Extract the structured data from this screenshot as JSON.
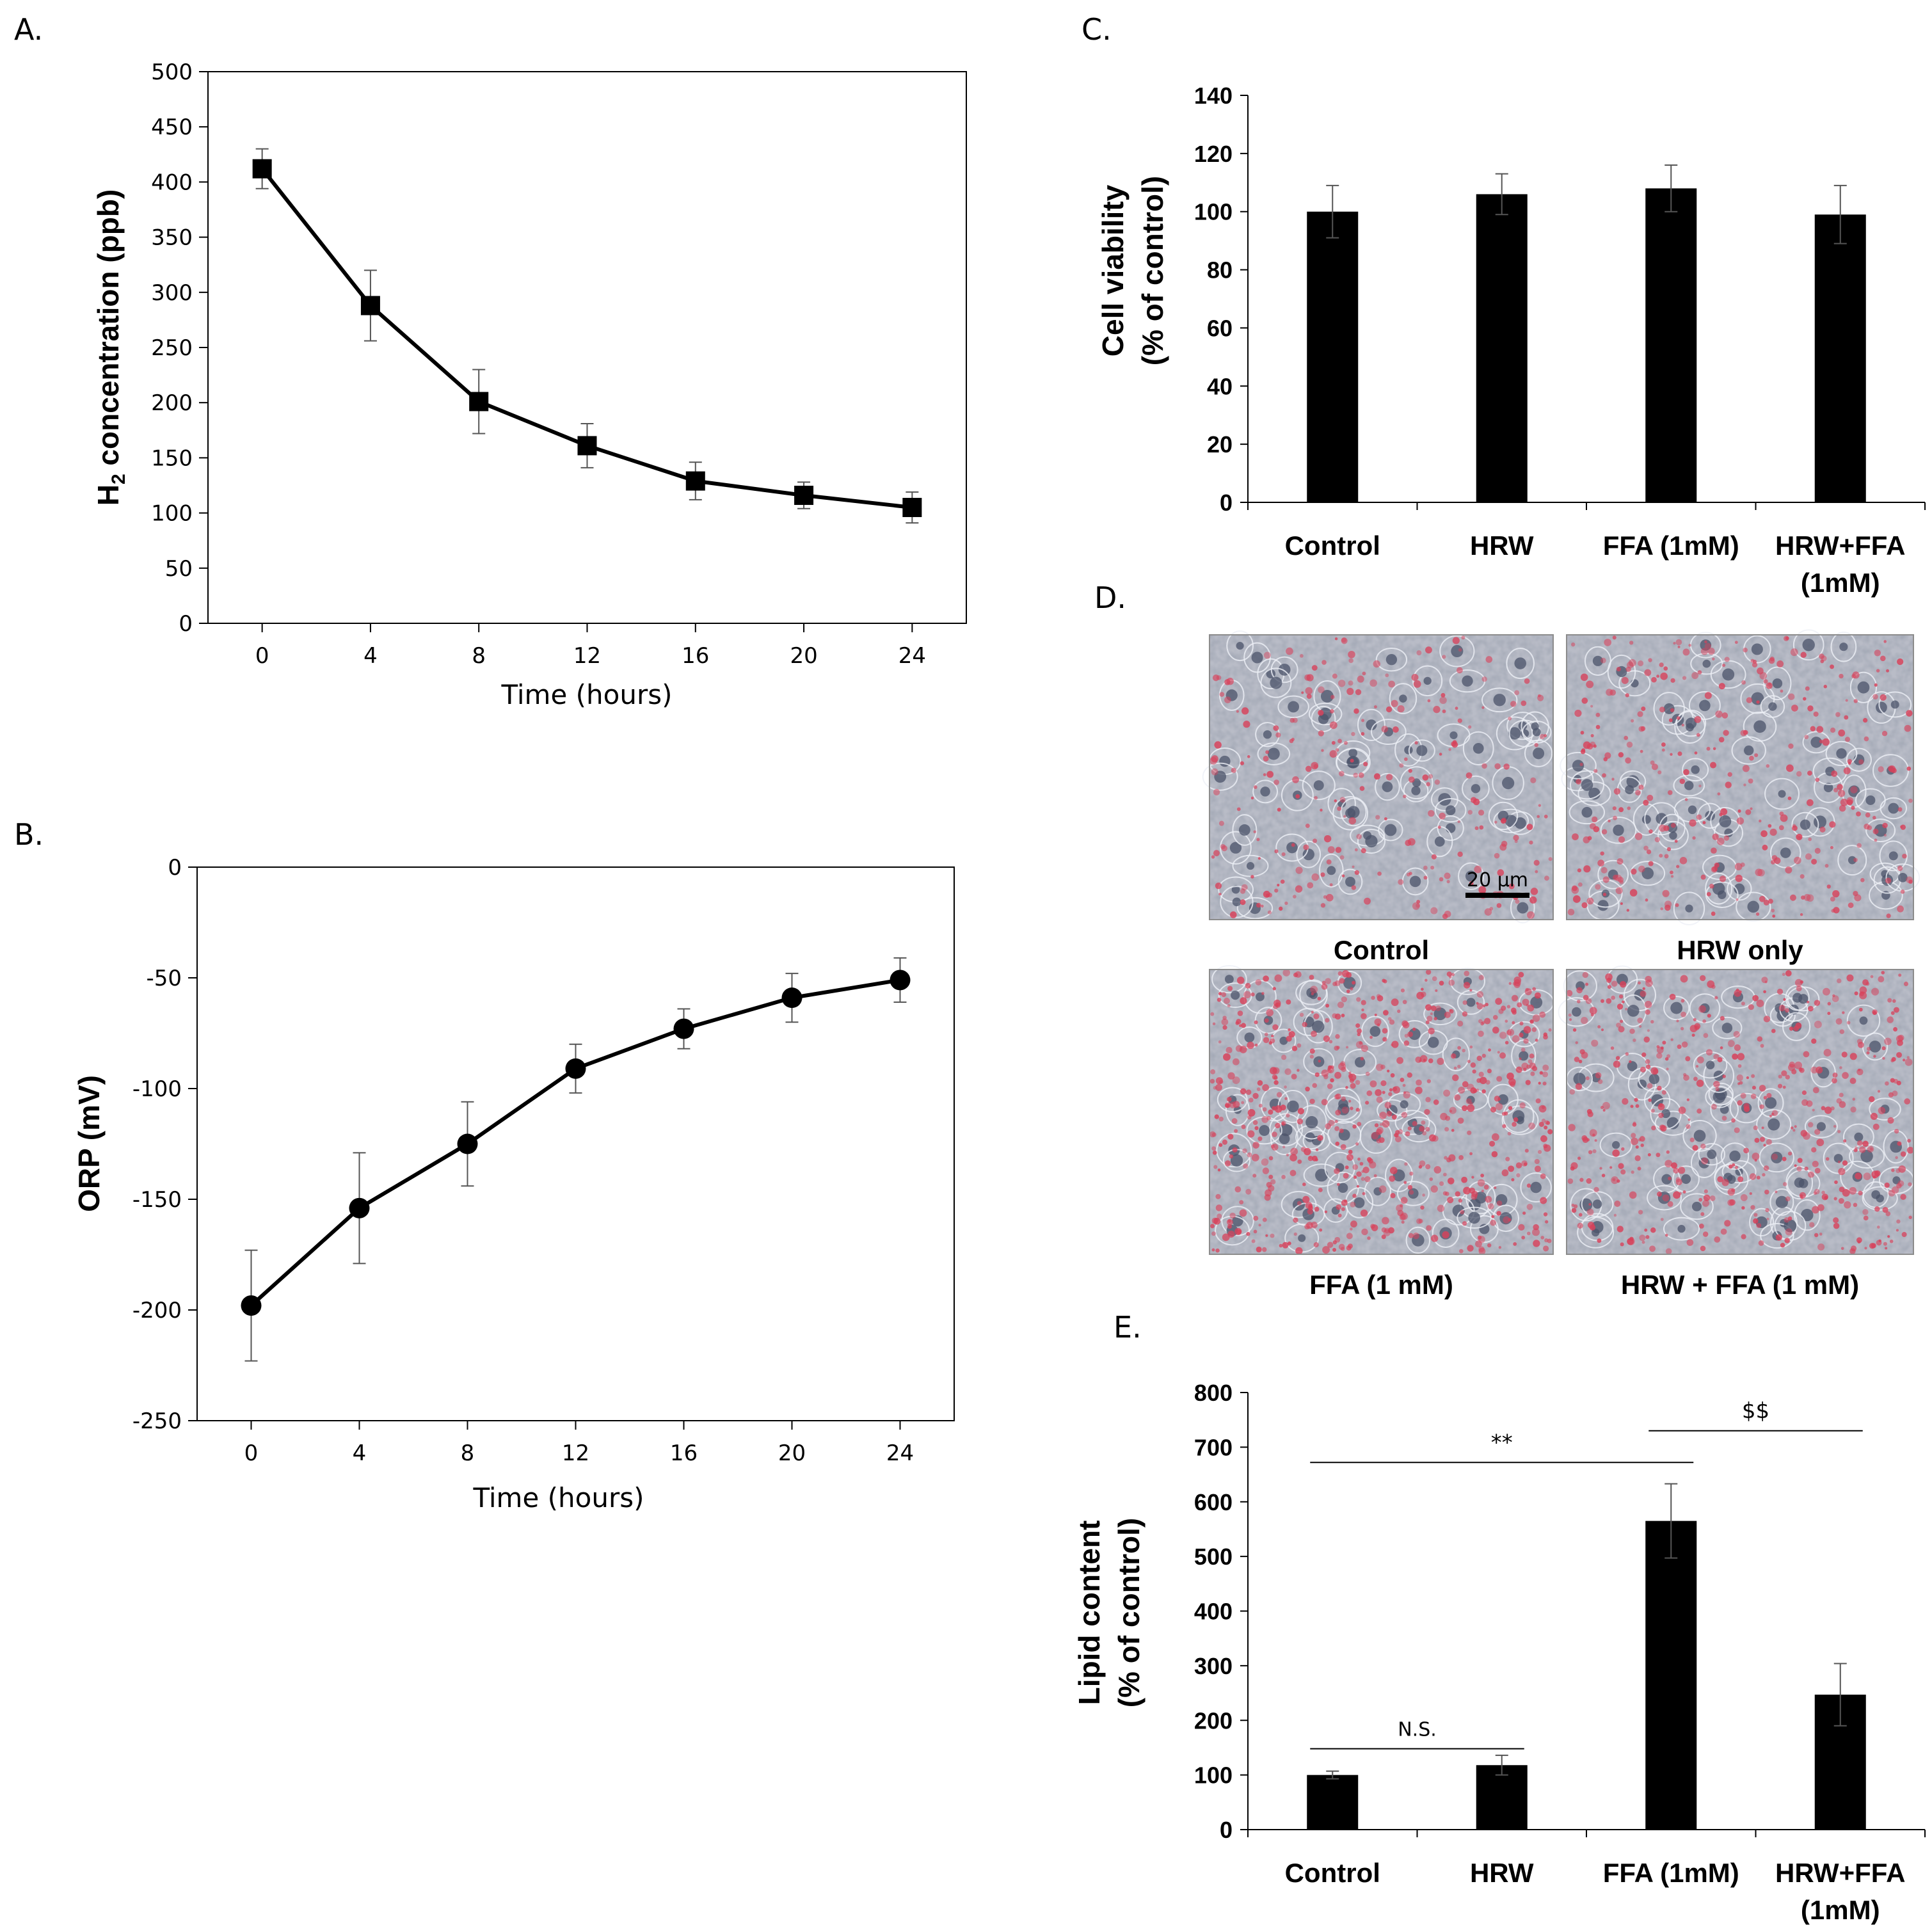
{
  "colors": {
    "ink": "#000000",
    "error": "#555555",
    "frame": "#8c8c8c",
    "stain": "#d8415a"
  },
  "panels": {
    "A": "A.",
    "B": "B.",
    "C": "C.",
    "D": "D.",
    "E": "E."
  },
  "chart_data": [
    {
      "id": "A",
      "type": "line",
      "xlabel": "Time (hours)",
      "ylabel_main": "H",
      "ylabel_sub": "2",
      "ylabel_rest": " concentration (ppb)",
      "x": [
        0,
        4,
        8,
        12,
        16,
        20,
        24
      ],
      "values": [
        412,
        288,
        201,
        161,
        129,
        116,
        105
      ],
      "errors": [
        18,
        32,
        29,
        20,
        17,
        12,
        14
      ],
      "xlim": [
        -2,
        26
      ],
      "ylim": [
        0,
        500
      ],
      "xticks": [
        0,
        4,
        8,
        12,
        16,
        20,
        24
      ],
      "yticks": [
        0,
        50,
        100,
        150,
        200,
        250,
        300,
        350,
        400,
        450,
        500
      ],
      "marker": "square"
    },
    {
      "id": "B",
      "type": "line",
      "xlabel": "Time (hours)",
      "ylabel": "ORP (mV)",
      "x": [
        0,
        4,
        8,
        12,
        16,
        20,
        24
      ],
      "values": [
        -198,
        -154,
        -125,
        -91,
        -73,
        -59,
        -51
      ],
      "errors": [
        25,
        25,
        19,
        11,
        9,
        11,
        10
      ],
      "xlim": [
        -2,
        26
      ],
      "ylim": [
        -250,
        0
      ],
      "xticks": [
        0,
        4,
        8,
        12,
        16,
        20,
        24
      ],
      "yticks": [
        -250,
        -200,
        -150,
        -100,
        -50,
        0
      ],
      "marker": "circle"
    },
    {
      "id": "C",
      "type": "bar",
      "ylabel_line1": "Cell viability",
      "ylabel_line2": "(% of control)",
      "categories": [
        [
          "Control"
        ],
        [
          "HRW"
        ],
        [
          "FFA (1mM)"
        ],
        [
          "HRW+FFA",
          "(1mM)"
        ]
      ],
      "values": [
        100,
        106,
        108,
        99
      ],
      "errors": [
        9,
        7,
        8,
        10
      ],
      "ylim": [
        0,
        140
      ],
      "yticks": [
        0,
        20,
        40,
        60,
        80,
        100,
        120,
        140
      ]
    },
    {
      "id": "E",
      "type": "bar",
      "ylabel_line1": "Lipid content",
      "ylabel_line2": "(% of control)",
      "categories": [
        [
          "Control"
        ],
        [
          "HRW"
        ],
        [
          "FFA (1mM)"
        ],
        [
          "HRW+FFA",
          "(1mM)"
        ]
      ],
      "values": [
        100,
        118,
        565,
        247
      ],
      "errors": [
        7,
        18,
        68,
        57
      ],
      "ylim": [
        0,
        800
      ],
      "yticks": [
        0,
        100,
        200,
        300,
        400,
        500,
        600,
        700,
        800
      ],
      "annotations": [
        {
          "text": "N.S.",
          "from": 0,
          "to": 1,
          "y": 148
        },
        {
          "text": "**",
          "from": 0,
          "to": 2,
          "y": 672
        },
        {
          "text": "$$",
          "from": 2,
          "to": 3,
          "y": 730
        }
      ]
    }
  ],
  "micrographs": {
    "captions": [
      "Control",
      "HRW only",
      "FFA (1 mM)",
      "HRW + FFA (1 mM)"
    ],
    "stain_level": [
      0.3,
      0.4,
      0.8,
      0.6
    ],
    "scale_bar": "20 µm"
  }
}
